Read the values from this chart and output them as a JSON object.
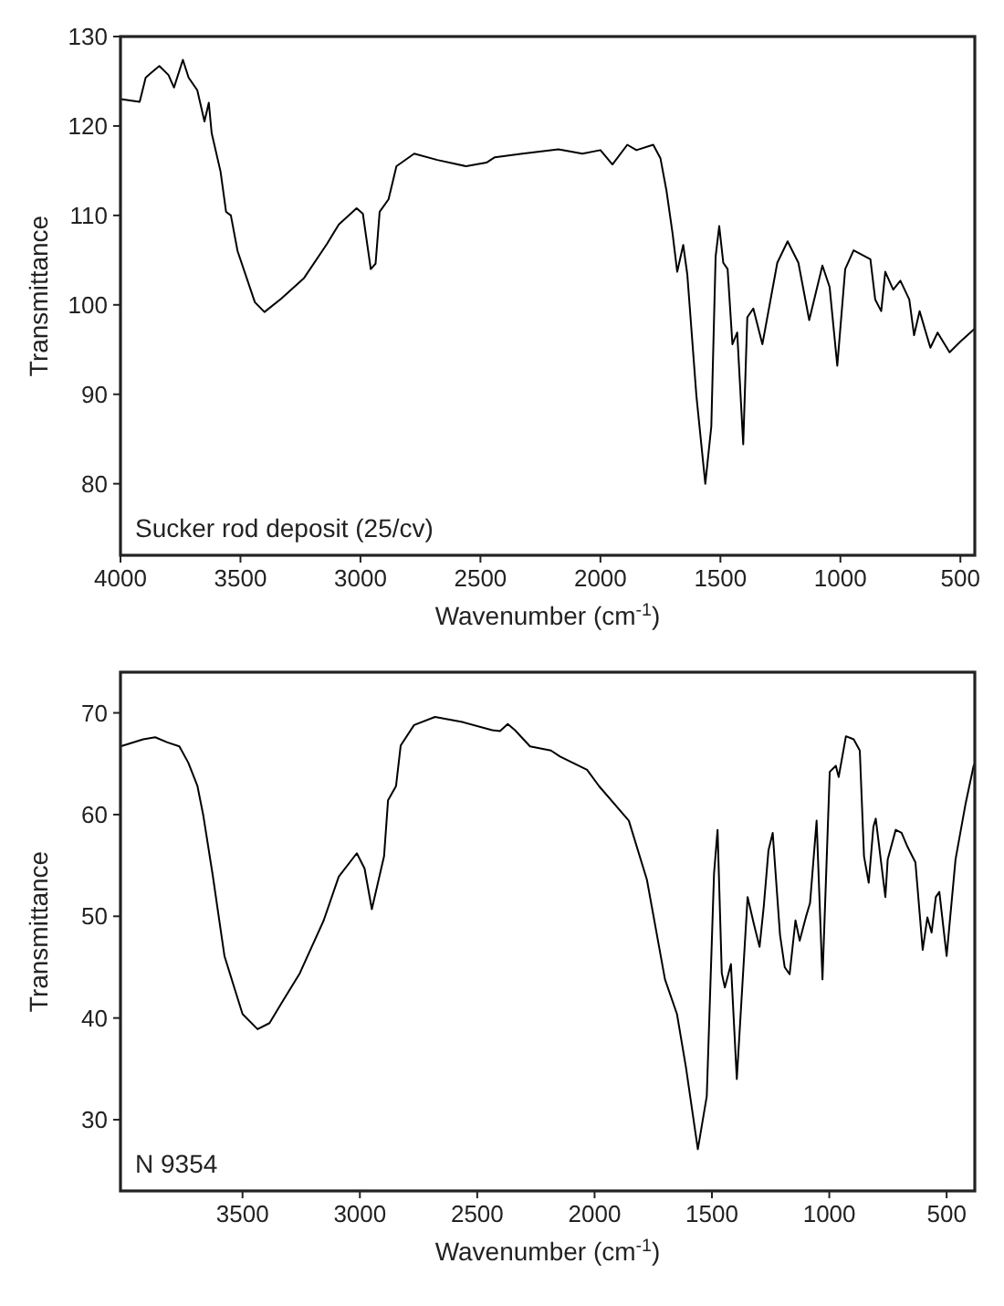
{
  "chart_data": [
    {
      "type": "line",
      "xlabel": "Wavenumber (cm$^{-1}$)",
      "ylabel": "Transmittance",
      "annotations": [
        "Sucker rod deposit (25/cv)"
      ],
      "xlim": [
        4000,
        440
      ],
      "ylim": [
        72,
        130
      ],
      "xticks": [
        4000,
        3500,
        3000,
        2500,
        2000,
        1500,
        1000,
        500
      ],
      "yticks": [
        80,
        90,
        100,
        110,
        120,
        130
      ],
      "series": [
        {
          "color": "#000000",
          "x": [
            4000,
            3920,
            3895,
            3870,
            3838,
            3800,
            3777,
            3740,
            3716,
            3680,
            3650,
            3632,
            3620,
            3583,
            3560,
            3540,
            3512,
            3440,
            3400,
            3330,
            3235,
            3140,
            3090,
            3016,
            2990,
            2957,
            2937,
            2920,
            2883,
            2850,
            2776,
            2680,
            2560,
            2475,
            2440,
            2325,
            2175,
            2075,
            2000,
            1950,
            1888,
            1850,
            1780,
            1750,
            1725,
            1700,
            1680,
            1655,
            1638,
            1600,
            1563,
            1538,
            1520,
            1505,
            1488,
            1470,
            1450,
            1430,
            1405,
            1388,
            1363,
            1325,
            1263,
            1220,
            1175,
            1130,
            1075,
            1045,
            1013,
            980,
            945,
            875,
            855,
            830,
            813,
            780,
            750,
            713,
            693,
            670,
            625,
            595,
            545,
            500,
            442
          ],
          "values": [
            123,
            122.7,
            125.4,
            126,
            126.7,
            125.7,
            124.3,
            127.4,
            125.4,
            124,
            120.5,
            122.6,
            119.2,
            114.9,
            110.4,
            110,
            106,
            100.3,
            99.2,
            100.7,
            103,
            106.8,
            109,
            110.8,
            110.2,
            104,
            104.6,
            110.4,
            111.8,
            115.5,
            116.9,
            116.2,
            115.5,
            115.9,
            116.5,
            116.9,
            117.4,
            116.9,
            117.3,
            115.7,
            117.9,
            117.3,
            117.9,
            116.4,
            112.8,
            108.1,
            103.7,
            106.7,
            103.4,
            89.8,
            80,
            86.4,
            105.4,
            108.8,
            104.7,
            104,
            95.6,
            96.9,
            84.4,
            98.6,
            99.6,
            95.6,
            104.7,
            107.1,
            104.7,
            98.3,
            104.4,
            102,
            93.2,
            104,
            106.1,
            105.1,
            100.6,
            99.3,
            103.7,
            101.7,
            102.7,
            100.6,
            96.6,
            99.3,
            95.2,
            96.9,
            94.7,
            95.9,
            97.3
          ]
        }
      ]
    },
    {
      "type": "line",
      "xlabel": "Wavenumber (cm$^{-1}$)",
      "ylabel": "Transmittance",
      "annotations": [
        "N 9354"
      ],
      "xlim": [
        4020,
        380
      ],
      "ylim": [
        23,
        74
      ],
      "xticks": [
        3500,
        3000,
        2500,
        2000,
        1500,
        1000,
        500
      ],
      "yticks": [
        30,
        40,
        50,
        60,
        70
      ],
      "series": [
        {
          "color": "#000000",
          "x": [
            4020,
            3923,
            3872,
            3820,
            3769,
            3731,
            3692,
            3667,
            3628,
            3577,
            3538,
            3500,
            3436,
            3385,
            3333,
            3256,
            3154,
            3090,
            3013,
            2980,
            2949,
            2897,
            2880,
            2846,
            2826,
            2769,
            2680,
            2564,
            2436,
            2403,
            2370,
            2339,
            2275,
            2186,
            2147,
            2032,
            1981,
            1854,
            1777,
            1700,
            1649,
            1611,
            1560,
            1522,
            1491,
            1476,
            1458,
            1445,
            1419,
            1394,
            1348,
            1322,
            1297,
            1279,
            1259,
            1241,
            1210,
            1190,
            1169,
            1144,
            1126,
            1100,
            1082,
            1054,
            1029,
            998,
            972,
            960,
            929,
            896,
            870,
            852,
            832,
            812,
            802,
            761,
            751,
            717,
            692,
            666,
            633,
            602,
            582,
            564,
            546,
            531,
            500,
            462,
            419,
            385,
            380
          ],
          "values": [
            66.7,
            67.4,
            67.6,
            67.1,
            66.7,
            65.1,
            62.8,
            59.9,
            54.2,
            46.1,
            43.2,
            40.4,
            38.9,
            39.5,
            41.5,
            44.4,
            49.6,
            53.9,
            56.2,
            54.7,
            50.7,
            55.9,
            61.4,
            62.8,
            66.8,
            68.8,
            69.6,
            69.1,
            68.3,
            68.2,
            68.9,
            68.3,
            66.7,
            66.3,
            65.7,
            64.4,
            62.8,
            59.4,
            53.6,
            43.8,
            40.4,
            35.2,
            27.1,
            32.3,
            54.2,
            58.5,
            44.4,
            43,
            45.3,
            34,
            51.9,
            49.3,
            47,
            51,
            56.5,
            58.2,
            48.2,
            45,
            44.3,
            49.6,
            47.6,
            49.9,
            51.3,
            59.4,
            43.8,
            64.2,
            64.8,
            63.7,
            67.7,
            67.4,
            66.3,
            55.9,
            53.3,
            58.8,
            59.6,
            51.9,
            55.6,
            58.5,
            58.2,
            56.8,
            55.3,
            46.7,
            49.9,
            48.4,
            51.9,
            52.4,
            46.1,
            55.6,
            61.1,
            64.8,
            65
          ]
        }
      ]
    }
  ]
}
